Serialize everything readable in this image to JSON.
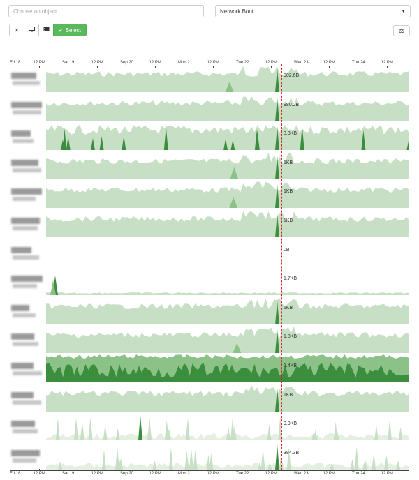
{
  "object_input": {
    "placeholder": "Choose an object"
  },
  "metric_select": {
    "selected": "Network Bout"
  },
  "toolbar": {
    "close_icon": "✕",
    "monitor_icon": "🖥",
    "film_icon": "🎬",
    "select_label": "Select",
    "check_icon": "✔",
    "scale_icon": "⚖"
  },
  "axis": {
    "ticks": [
      "Fri 18",
      "12 PM",
      "Sat 19",
      "12 PM",
      "Sep 20",
      "12 PM",
      "Mon 21",
      "12 PM",
      "Tue 22",
      "12 PM",
      "Wed 23",
      "12 PM",
      "Thu 24",
      "12 PM"
    ],
    "bottom_ticks": [
      "Fri 18",
      "12 PM",
      "Sat 19",
      "12 PM",
      "Sep 20",
      "12 PM",
      "Mon 21",
      "12 PM",
      "Tue 22",
      "12 PM",
      "Wed 23",
      "12 PM",
      "Thu 24",
      "12 PM"
    ]
  },
  "colors": {
    "light": "#c7dfc4",
    "mid": "#8cc287",
    "dark": "#3c8e3f",
    "cursor": "#e02020"
  },
  "rows": [
    {
      "value": "902.6B",
      "type": "dense"
    },
    {
      "value": "980.2B",
      "type": "dense"
    },
    {
      "value": "3.3KB",
      "type": "spiky"
    },
    {
      "value": "1KB",
      "type": "dense"
    },
    {
      "value": "1KB",
      "type": "dense"
    },
    {
      "value": "1KB",
      "type": "dense"
    },
    {
      "value": "0B",
      "type": "empty"
    },
    {
      "value": "1.7KB",
      "type": "flat"
    },
    {
      "value": "1KB",
      "type": "dense"
    },
    {
      "value": "1.8KB",
      "type": "dense"
    },
    {
      "value": "1.4KB",
      "type": "full"
    },
    {
      "value": "1KB",
      "type": "dense"
    },
    {
      "value": "9.9KB",
      "type": "sparse"
    },
    {
      "value": "384.3B",
      "type": "sparse"
    }
  ]
}
